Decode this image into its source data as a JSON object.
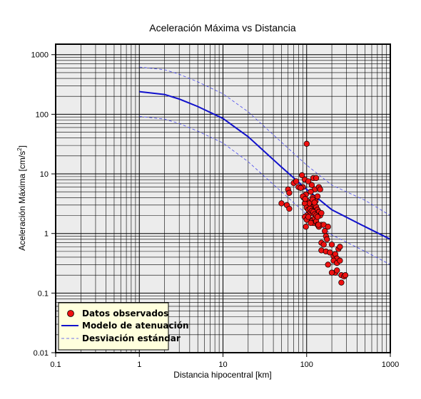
{
  "chart_data": {
    "type": "scatter",
    "title": "Aceleración Máxima vs Distancia",
    "xlabel": "Distancia hipocentral [km]",
    "ylabel_main": "Aceleración Máxima [cm/s",
    "ylabel_sup": "2",
    "ylabel_end": "]",
    "x_scale": "log",
    "y_scale": "log",
    "xlim": [
      0.1,
      1000
    ],
    "ylim": [
      0.01,
      1500
    ],
    "x_ticks": [
      {
        "value": 0.1,
        "label": "0.1"
      },
      {
        "value": 1,
        "label": "1"
      },
      {
        "value": 10,
        "label": "10"
      },
      {
        "value": 100,
        "label": "100"
      },
      {
        "value": 1000,
        "label": "1000"
      }
    ],
    "y_ticks": [
      {
        "value": 0.01,
        "label": "0.01"
      },
      {
        "value": 0.1,
        "label": "0.1"
      },
      {
        "value": 1,
        "label": "1"
      },
      {
        "value": 10,
        "label": "10"
      },
      {
        "value": 100,
        "label": "100"
      },
      {
        "value": 1000,
        "label": "1000"
      }
    ],
    "grid": true,
    "legend_position": "bottom-left",
    "colors": {
      "background": "#ececec",
      "grid": "#000000",
      "points": "#ee1111",
      "model": "#1111cc",
      "stddev": "#4444ee",
      "legend_bg": "#ffffdd"
    },
    "legend": [
      {
        "label": "Datos observados",
        "kind": "point"
      },
      {
        "label": "Modelo de atenuación",
        "kind": "line"
      },
      {
        "label": "Desviación estándar",
        "kind": "dashed"
      }
    ],
    "model_curve": {
      "x": [
        1,
        2,
        3,
        5,
        10,
        20,
        50,
        100,
        200,
        500,
        1000
      ],
      "y": [
        240,
        215,
        180,
        135,
        85,
        42,
        13,
        5.5,
        2.5,
        1.3,
        0.8
      ]
    },
    "stddev_upper": {
      "x": [
        1,
        2,
        3,
        5,
        10,
        20,
        50,
        100,
        200,
        500,
        1000
      ],
      "y": [
        620,
        560,
        470,
        350,
        220,
        110,
        34,
        14,
        6.5,
        3.6,
        2.0
      ]
    },
    "stddev_lower": {
      "x": [
        1,
        2,
        3,
        5,
        10,
        20,
        50,
        100,
        200,
        500,
        1000
      ],
      "y": [
        92,
        83,
        70,
        52,
        33,
        16,
        5,
        2.1,
        0.95,
        0.5,
        0.3
      ]
    },
    "observed": {
      "x": [
        100,
        88,
        90,
        95,
        105,
        115,
        120,
        125,
        130,
        60,
        62,
        70,
        75,
        80,
        85,
        92,
        98,
        102,
        108,
        112,
        118,
        122,
        128,
        135,
        140,
        145,
        50,
        58,
        62,
        95,
        100,
        105,
        110,
        115,
        120,
        125,
        130,
        135,
        140,
        145,
        150,
        100,
        105,
        110,
        115,
        120,
        125,
        130,
        135,
        140,
        150,
        160,
        165,
        170,
        175,
        180,
        150,
        160,
        200,
        210,
        220,
        230,
        240,
        250,
        150,
        170,
        190,
        210,
        230,
        250,
        180,
        220,
        260,
        280,
        200,
        230,
        260,
        290,
        95,
        100,
        105,
        110,
        115,
        120,
        125,
        130,
        135,
        98,
        112,
        138,
        90,
        96,
        118,
        124
      ],
      "y": [
        32,
        9.5,
        6.0,
        8.0,
        7.5,
        6.5,
        8.5,
        5.5,
        8.5,
        5.5,
        4.8,
        7.0,
        7.5,
        6.0,
        5.8,
        4.0,
        4.5,
        3.5,
        3.2,
        5.0,
        4.0,
        3.0,
        3.5,
        4.2,
        6.0,
        5.5,
        3.2,
        3.0,
        2.6,
        3.2,
        2.7,
        2.5,
        2.2,
        2.5,
        2.8,
        3.0,
        2.8,
        2.5,
        2.3,
        2.0,
        2.2,
        2.0,
        1.8,
        1.7,
        1.6,
        1.5,
        1.8,
        1.6,
        1.4,
        1.3,
        1.4,
        1.4,
        1.1,
        0.9,
        0.8,
        1.3,
        0.7,
        0.65,
        0.65,
        0.42,
        0.45,
        0.38,
        0.55,
        0.6,
        0.52,
        0.5,
        0.48,
        0.35,
        0.32,
        0.35,
        0.3,
        0.22,
        0.2,
        0.19,
        0.22,
        0.24,
        0.15,
        0.2,
        1.9,
        1.7,
        1.9,
        2.6,
        2.4,
        2.3,
        2.1,
        2.0,
        1.9,
        1.3,
        1.5,
        1.4,
        4.2,
        3.8,
        3.7,
        3.3
      ]
    }
  }
}
